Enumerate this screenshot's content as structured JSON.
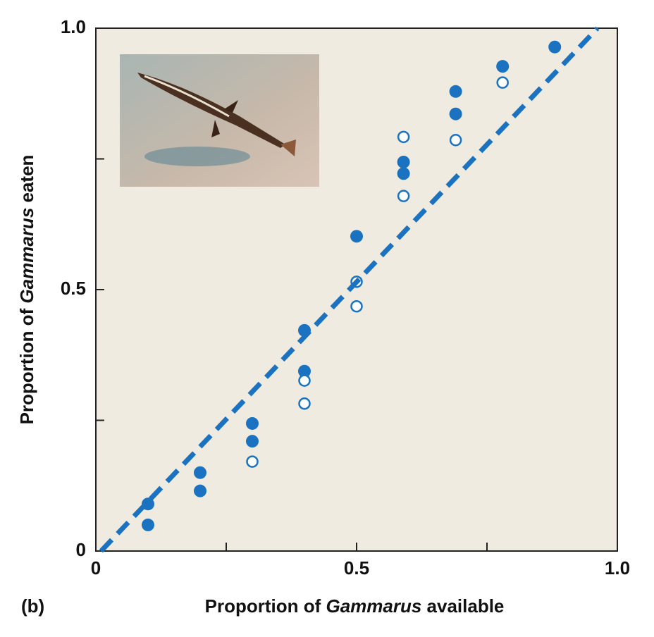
{
  "chart_data": {
    "type": "scatter",
    "panel_label": "(b)",
    "x_label": [
      "Proportion of ",
      "Gammarus",
      " available"
    ],
    "y_label": [
      "Proportion of ",
      "Gammarus",
      " eaten"
    ],
    "xlim": [
      0,
      1
    ],
    "ylim": [
      0,
      1
    ],
    "xticks": [
      0,
      {
        "value": 0.5,
        "label": "0.5"
      },
      {
        "value": 1,
        "label": "1.0"
      }
    ],
    "yticks": [
      0,
      {
        "value": 0.5,
        "label": "0.5"
      },
      {
        "value": 1,
        "label": "1.0"
      }
    ],
    "xminor_ticks": [
      0.25,
      0.75
    ],
    "yminor_ticks": [
      0.25,
      0.75
    ],
    "series": [
      {
        "marker": "filled",
        "color": "#1a72c0",
        "x": [
          0.1,
          0.1,
          0.2,
          0.2,
          0.3,
          0.3,
          0.4,
          0.4,
          0.5,
          0.59,
          0.59,
          0.69,
          0.69,
          0.78,
          0.88
        ],
        "values": [
          0.09,
          0.05,
          0.15,
          0.115,
          0.244,
          0.21,
          0.422,
          0.344,
          0.602,
          0.744,
          0.722,
          0.879,
          0.836,
          0.927,
          0.964
        ]
      },
      {
        "marker": "open",
        "color": "#1a72c0",
        "x": [
          0.3,
          0.4,
          0.4,
          0.5,
          0.5,
          0.59,
          0.59,
          0.69,
          0.78
        ],
        "values": [
          0.171,
          0.326,
          0.282,
          0.515,
          0.468,
          0.792,
          0.679,
          0.786,
          0.896
        ]
      },
      {
        "marker": "dashed-line",
        "color": "#1a72c0",
        "x": [
          0.01,
          0.962
        ],
        "values": [
          0,
          1
        ]
      }
    ]
  }
}
